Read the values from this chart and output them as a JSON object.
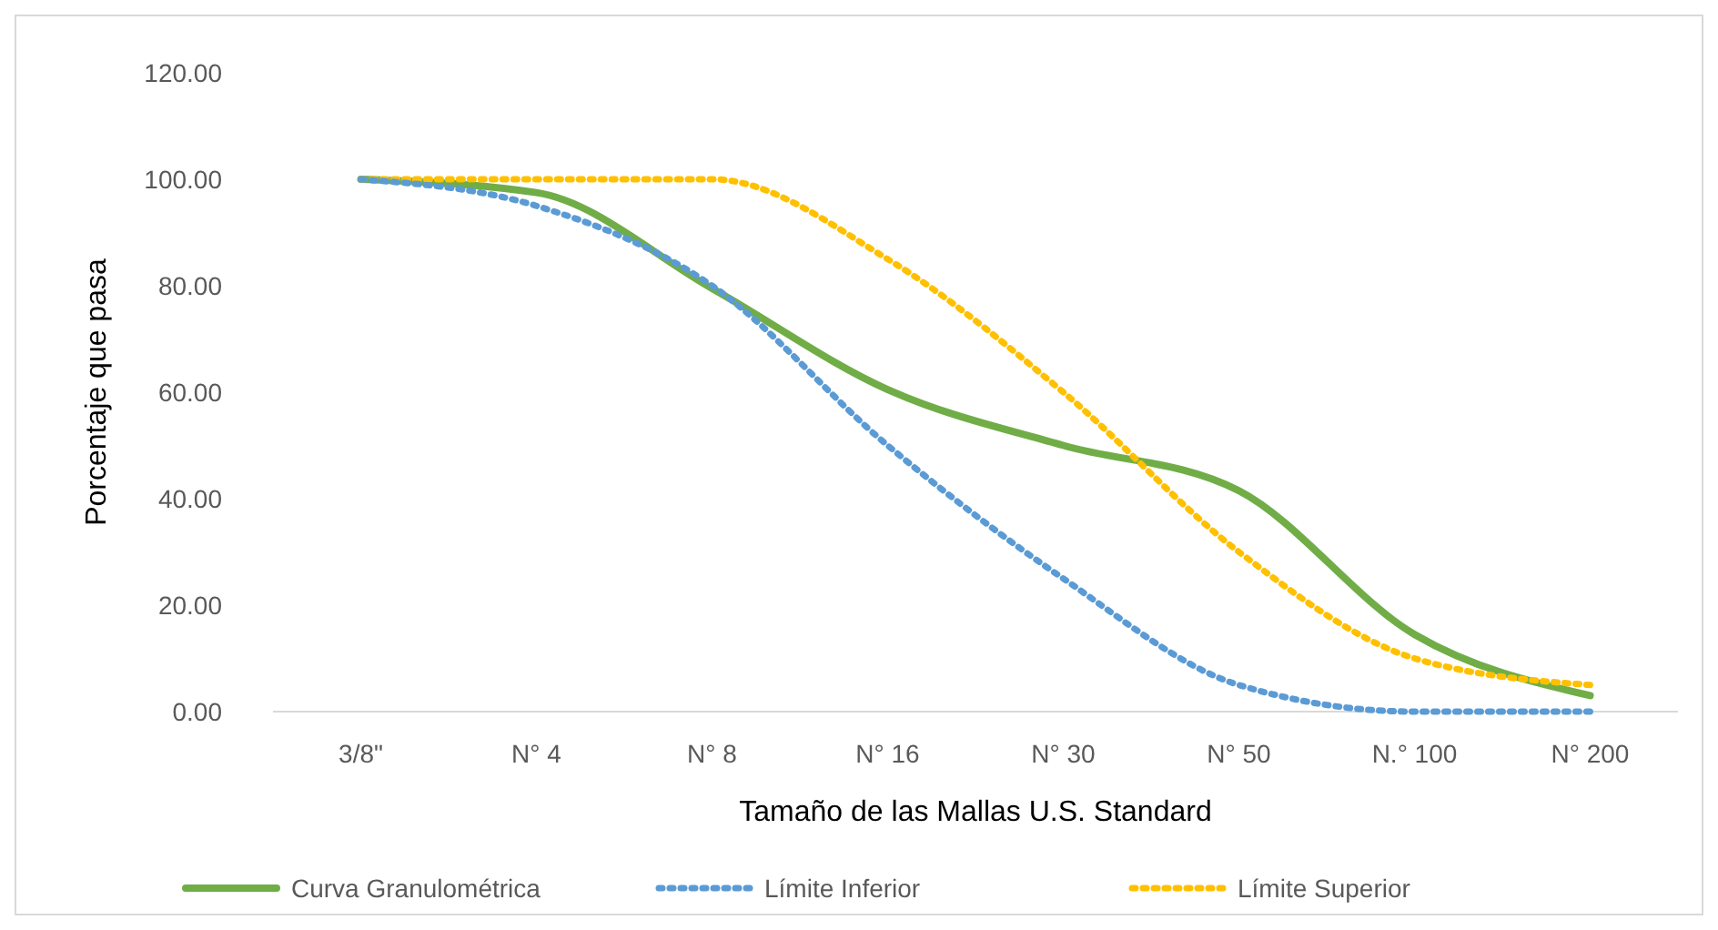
{
  "chart_data": {
    "type": "line",
    "xlabel": "Tamaño de las Mallas U.S. Standard",
    "ylabel": "Porcentaje que pasa",
    "categories": [
      "3/8\"",
      "N° 4",
      "N° 8",
      "N° 16",
      "N° 30",
      "N° 50",
      "N.° 100",
      "N° 200"
    ],
    "ylim": [
      0,
      120
    ],
    "yticks": [
      {
        "value": 0,
        "label": "0.00"
      },
      {
        "value": 20,
        "label": "20.00"
      },
      {
        "value": 40,
        "label": "40.00"
      },
      {
        "value": 60,
        "label": "60.00"
      },
      {
        "value": 80,
        "label": "80.00"
      },
      {
        "value": 100,
        "label": "100.00"
      },
      {
        "value": 120,
        "label": "120.00"
      }
    ],
    "grid": false,
    "legend": "bottom",
    "marker": "none",
    "series": [
      {
        "name": "Curva Granulométrica",
        "color": "#70ad47",
        "line_style": "solid",
        "values": [
          100,
          97.5,
          79.5,
          60.5,
          50,
          41.5,
          14.5,
          3
        ]
      },
      {
        "name": "Límite Inferior",
        "color": "#5b9bd5",
        "line_style": "dotted",
        "values": [
          100,
          95,
          80,
          50,
          25,
          5,
          0,
          0
        ]
      },
      {
        "name": "Límite Superior",
        "color": "#ffc000",
        "line_style": "dotted",
        "values": [
          100,
          100,
          100,
          85,
          60,
          30,
          10,
          5
        ]
      }
    ]
  }
}
